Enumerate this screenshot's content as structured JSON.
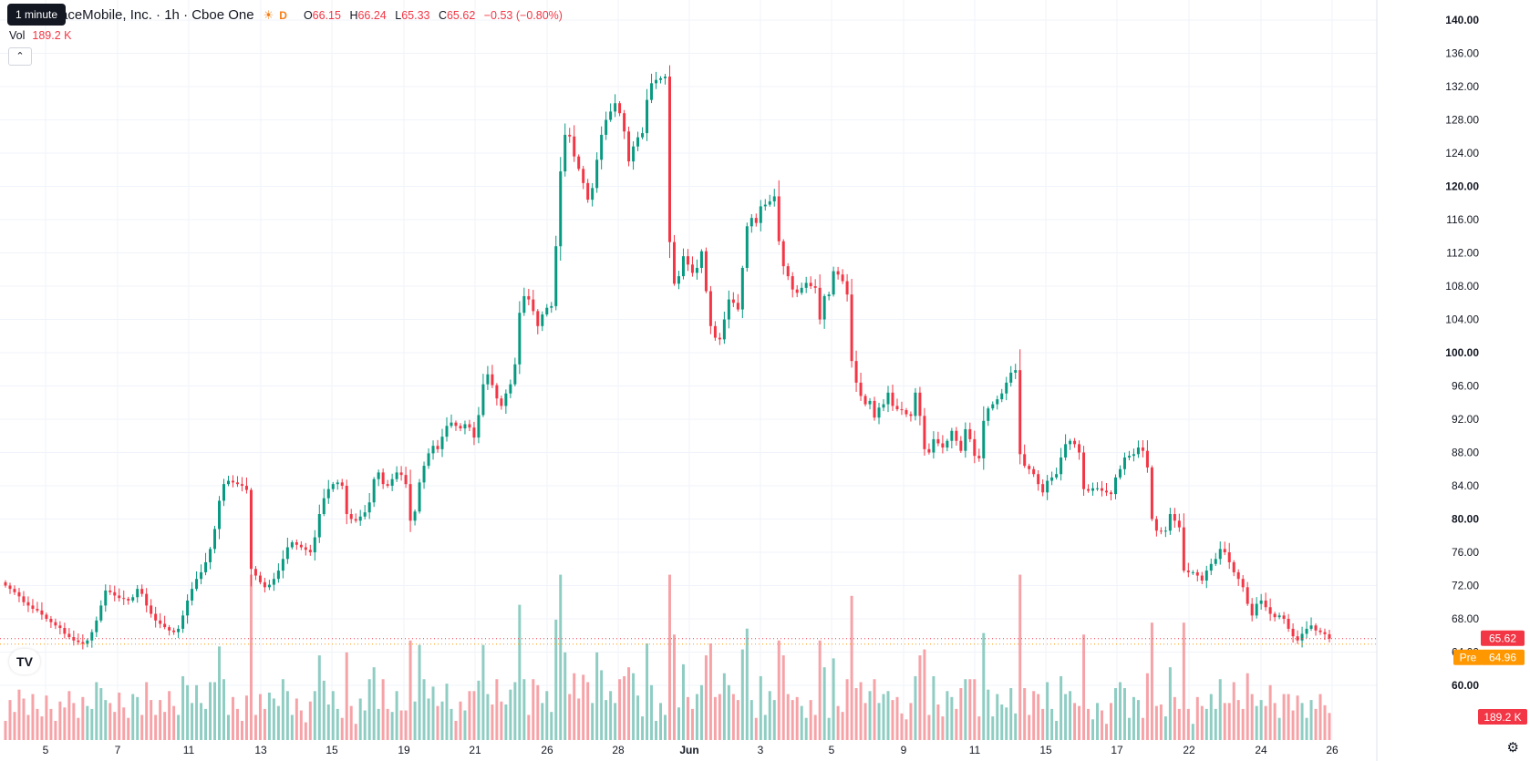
{
  "header": {
    "timeframe_tooltip": "1 minute",
    "symbol_title": "aceMobile, Inc. · 1h · Cboe One",
    "session_icon": "sun-icon",
    "session_badge": "D",
    "ohlc": {
      "o_label": "O",
      "o": "66.15",
      "h_label": "H",
      "h": "66.24",
      "l_label": "L",
      "l": "65.33",
      "c_label": "C",
      "c": "65.62",
      "change": "−0.53 (−0.80%)"
    },
    "volume_label": "Vol",
    "volume_value": "189.2 K",
    "collapse_icon": "chevron-up-icon"
  },
  "logo_text": "TV",
  "settings_icon": "gear-icon",
  "price_scale": {
    "ticks": [
      "140.00",
      "136.00",
      "132.00",
      "128.00",
      "124.00",
      "120.00",
      "116.00",
      "112.00",
      "108.00",
      "104.00",
      "100.00",
      "96.00",
      "92.00",
      "88.00",
      "84.00",
      "80.00",
      "76.00",
      "72.00",
      "68.00",
      "64.00",
      "60.00"
    ],
    "bold_ticks": [
      "140.00",
      "120.00",
      "100.00",
      "80.00",
      "60.00"
    ],
    "last_price_label": "65.62",
    "pre_label": "Pre",
    "pre_price": "64.96",
    "volume_label": "189.2 K"
  },
  "time_axis": {
    "labels": [
      "5",
      "7",
      "11",
      "13",
      "15",
      "19",
      "21",
      "26",
      "28",
      "Jun",
      "3",
      "5",
      "9",
      "11",
      "15",
      "17",
      "22",
      "24",
      "26"
    ],
    "bold_labels": [
      "Jun"
    ]
  },
  "colors": {
    "up": "#089981",
    "down": "#f23645",
    "up_volume": "#8fcdc3",
    "down_volume": "#f6a3a8",
    "grid": "#f0f3fa",
    "pre_market": "#ff9800",
    "text": "#131722"
  },
  "chart_data": {
    "type": "candlestick",
    "interval": "1h",
    "ylim": [
      60,
      140
    ],
    "x_labels": [
      "5",
      "7",
      "11",
      "13",
      "15",
      "19",
      "21",
      "26",
      "28",
      "Jun",
      "3",
      "5",
      "9",
      "11",
      "15",
      "17",
      "22",
      "24",
      "26"
    ],
    "close": [
      72.0,
      71.6,
      71.2,
      70.7,
      70.0,
      69.6,
      69.2,
      69.0,
      68.5,
      68.0,
      67.6,
      67.2,
      66.9,
      66.2,
      65.8,
      65.4,
      65.2,
      65.0,
      65.4,
      66.4,
      67.8,
      69.6,
      71.4,
      71.2,
      70.8,
      70.5,
      70.4,
      70.2,
      70.6,
      71.6,
      71.0,
      69.6,
      68.6,
      67.8,
      67.4,
      67.0,
      66.6,
      66.4,
      66.8,
      68.4,
      70.2,
      71.6,
      72.8,
      73.6,
      74.8,
      76.4,
      78.8,
      82.2,
      84.2,
      84.6,
      84.4,
      84.2,
      84.0,
      83.5,
      74.0,
      73.2,
      72.4,
      71.8,
      72.1,
      72.8,
      73.8,
      75.2,
      76.6,
      77.2,
      76.9,
      76.6,
      76.3,
      76.0,
      77.8,
      80.6,
      82.5,
      83.6,
      84.2,
      84.4,
      84.0,
      80.6,
      80.0,
      79.8,
      80.3,
      80.8,
      82.0,
      84.8,
      85.6,
      84.2,
      84.0,
      84.8,
      85.6,
      85.3,
      84.2,
      79.8,
      80.9,
      84.4,
      86.4,
      87.9,
      88.8,
      88.4,
      89.9,
      91.2,
      91.6,
      91.2,
      90.9,
      91.4,
      91.0,
      89.8,
      92.5,
      96.2,
      97.4,
      96.1,
      94.5,
      93.6,
      95.1,
      96.2,
      98.6,
      104.8,
      106.8,
      106.4,
      105.0,
      103.2,
      104.6,
      105.4,
      105.6,
      112.8,
      121.8,
      126.2,
      126.0,
      123.6,
      122.1,
      120.4,
      118.4,
      119.8,
      123.2,
      126.2,
      128.0,
      129.0,
      130.0,
      128.8,
      126.6,
      123.0,
      124.8,
      125.9,
      126.4,
      130.4,
      132.4,
      132.8,
      133.0,
      133.2,
      113.3,
      108.3,
      109.2,
      111.6,
      110.6,
      109.6,
      110.2,
      112.2,
      107.4,
      103.2,
      101.8,
      101.6,
      104.0,
      106.4,
      106.0,
      105.2,
      110.2,
      115.2,
      116.2,
      115.6,
      117.6,
      117.8,
      118.2,
      118.8,
      113.4,
      110.4,
      109.2,
      107.6,
      107.2,
      107.8,
      108.4,
      108.0,
      107.8,
      104.0,
      106.8,
      107.0,
      109.8,
      109.4,
      108.6,
      107.0,
      99.0,
      96.4,
      94.8,
      93.8,
      94.2,
      92.2,
      93.4,
      93.8,
      95.2,
      93.6,
      93.2,
      93.1,
      92.6,
      92.4,
      95.2,
      92.4,
      88.4,
      88.0,
      89.6,
      89.1,
      88.6,
      89.4,
      90.6,
      89.4,
      88.2,
      90.8,
      89.6,
      87.6,
      87.3,
      91.8,
      93.3,
      93.8,
      94.4,
      95.1,
      96.4,
      97.6,
      97.9,
      87.8,
      86.4,
      86.0,
      85.4,
      84.2,
      83.2,
      84.6,
      85.0,
      85.4,
      87.4,
      89.0,
      89.4,
      89.0,
      88.0,
      83.6,
      83.4,
      83.7,
      83.7,
      83.4,
      83.2,
      83.0,
      85.0,
      86.0,
      87.4,
      87.6,
      87.8,
      88.6,
      88.2,
      86.2,
      80.0,
      78.6,
      78.5,
      78.6,
      80.6,
      79.8,
      79.0,
      73.8,
      73.6,
      73.6,
      73.2,
      72.6,
      73.8,
      74.6,
      75.2,
      76.4,
      76.0,
      74.8,
      73.6,
      72.8,
      71.8,
      69.8,
      68.4,
      69.8,
      70.2,
      69.4,
      68.6,
      68.2,
      68.4,
      68.0,
      66.8,
      65.9,
      65.4,
      66.2,
      66.8,
      67.2,
      66.6,
      66.4,
      66.15,
      65.62
    ]
  }
}
